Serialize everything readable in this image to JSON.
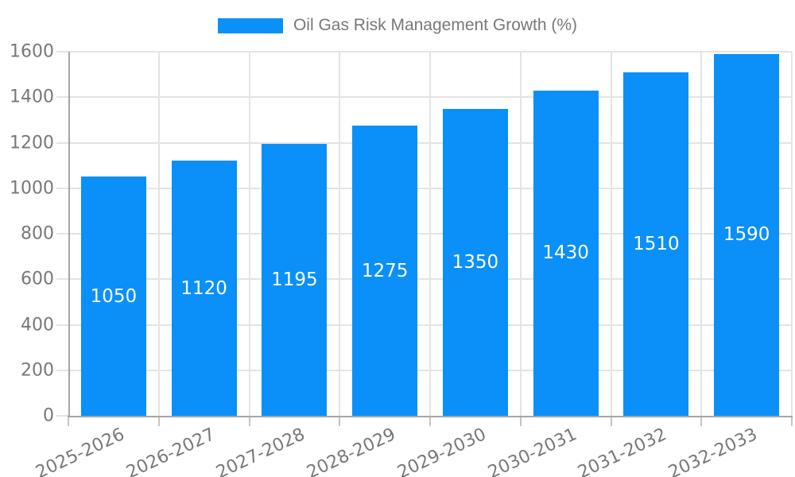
{
  "chart_data": {
    "type": "bar",
    "title": "Oil Gas Risk Management Growth (%)",
    "legend_position": "top-center",
    "legend_entries": [
      "Oil Gas Risk Management Growth (%)"
    ],
    "categories": [
      "2025-2026",
      "2026-2027",
      "2027-2028",
      "2028-2029",
      "2029-2030",
      "2030-2031",
      "2031-2032",
      "2032-2033"
    ],
    "values": [
      1050,
      1120,
      1195,
      1275,
      1350,
      1430,
      1510,
      1590
    ],
    "xlabel": "",
    "ylabel": "",
    "ylim": [
      0,
      1600
    ],
    "yticks": [
      0,
      200,
      400,
      600,
      800,
      1000,
      1200,
      1400,
      1600
    ],
    "grid": "horizontal and vertical light-gray gridlines",
    "x_label_rotation_deg": -25,
    "value_labels": "white, centered inside each bar",
    "colors": {
      "bar": "#0A90F8",
      "grid": "#e4e4e4",
      "axis": "#a6a6a6",
      "tick": "#c4c4c4",
      "text": "#787878",
      "value_label": "#ffffff",
      "background": "#ffffff"
    }
  }
}
